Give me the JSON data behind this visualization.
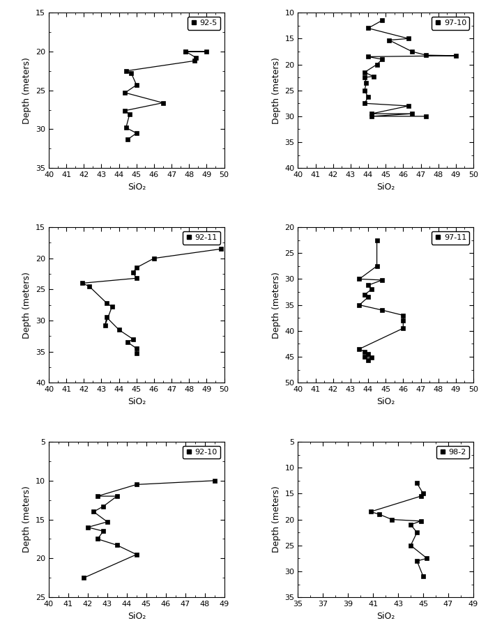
{
  "well_order": [
    [
      "92-5",
      "97-10"
    ],
    [
      "92-11",
      "97-11"
    ],
    [
      "92-10",
      "98-2"
    ]
  ],
  "wells": {
    "92-5": {
      "xlim": [
        40,
        50
      ],
      "xticks": [
        40,
        41,
        42,
        43,
        44,
        45,
        46,
        47,
        48,
        49,
        50
      ],
      "ylim": [
        35,
        15
      ],
      "yticks": [
        15,
        20,
        25,
        30,
        35
      ],
      "points": [
        [
          47.8,
          20.0
        ],
        [
          49.0,
          20.0
        ],
        [
          47.8,
          20.0
        ],
        [
          48.4,
          20.8
        ],
        [
          48.4,
          20.8
        ],
        [
          48.3,
          21.2
        ],
        [
          44.4,
          22.5
        ],
        [
          44.7,
          22.8
        ],
        [
          44.7,
          22.8
        ],
        [
          45.0,
          24.3
        ],
        [
          45.0,
          24.3
        ],
        [
          44.35,
          25.3
        ],
        [
          44.35,
          25.3
        ],
        [
          46.5,
          26.6
        ],
        [
          46.5,
          26.6
        ],
        [
          44.35,
          27.6
        ],
        [
          44.35,
          27.6
        ],
        [
          44.6,
          28.1
        ],
        [
          44.6,
          28.1
        ],
        [
          44.4,
          29.8
        ],
        [
          44.4,
          29.8
        ],
        [
          45.0,
          30.5
        ],
        [
          45.0,
          30.5
        ],
        [
          44.5,
          31.3
        ]
      ]
    },
    "97-10": {
      "xlim": [
        40,
        50
      ],
      "xticks": [
        40,
        41,
        42,
        43,
        44,
        45,
        46,
        47,
        48,
        49,
        50
      ],
      "ylim": [
        40,
        10
      ],
      "yticks": [
        10,
        15,
        20,
        25,
        30,
        35,
        40
      ],
      "points": [
        [
          44.8,
          11.5
        ],
        [
          44.0,
          13.0
        ],
        [
          44.0,
          13.0
        ],
        [
          46.3,
          15.0
        ],
        [
          46.3,
          15.0
        ],
        [
          45.2,
          15.3
        ],
        [
          45.2,
          15.3
        ],
        [
          46.5,
          17.5
        ],
        [
          46.5,
          17.5
        ],
        [
          47.3,
          18.2
        ],
        [
          47.3,
          18.2
        ],
        [
          49.0,
          18.3
        ],
        [
          44.0,
          18.5
        ],
        [
          44.8,
          19.0
        ],
        [
          44.8,
          19.0
        ],
        [
          44.5,
          20.0
        ],
        [
          44.5,
          20.0
        ],
        [
          43.8,
          21.5
        ],
        [
          43.8,
          21.5
        ],
        [
          44.3,
          22.3
        ],
        [
          44.3,
          22.3
        ],
        [
          43.8,
          22.5
        ],
        [
          43.8,
          22.5
        ],
        [
          43.9,
          23.5
        ],
        [
          43.9,
          23.5
        ],
        [
          43.8,
          25.0
        ],
        [
          43.8,
          25.0
        ],
        [
          44.0,
          26.3
        ],
        [
          44.0,
          26.3
        ],
        [
          43.8,
          27.5
        ],
        [
          43.8,
          27.5
        ],
        [
          46.3,
          28.0
        ],
        [
          46.3,
          28.0
        ],
        [
          44.2,
          29.5
        ],
        [
          44.2,
          29.5
        ],
        [
          46.5,
          29.5
        ],
        [
          46.5,
          29.5
        ],
        [
          44.2,
          30.0
        ],
        [
          44.2,
          30.0
        ],
        [
          47.3,
          30.0
        ]
      ]
    },
    "92-11": {
      "xlim": [
        40,
        50
      ],
      "xticks": [
        40,
        41,
        42,
        43,
        44,
        45,
        46,
        47,
        48,
        49,
        50
      ],
      "ylim": [
        40,
        15
      ],
      "yticks": [
        15,
        20,
        25,
        30,
        35,
        40
      ],
      "points": [
        [
          49.8,
          18.5
        ],
        [
          46.0,
          20.0
        ],
        [
          46.0,
          20.0
        ],
        [
          45.0,
          21.5
        ],
        [
          45.0,
          21.5
        ],
        [
          44.8,
          22.3
        ],
        [
          44.8,
          22.3
        ],
        [
          45.0,
          23.2
        ],
        [
          45.0,
          23.2
        ],
        [
          41.9,
          24.0
        ],
        [
          41.9,
          24.0
        ],
        [
          42.3,
          24.5
        ],
        [
          42.3,
          24.5
        ],
        [
          43.3,
          27.2
        ],
        [
          43.3,
          27.2
        ],
        [
          43.6,
          27.8
        ],
        [
          43.6,
          27.8
        ],
        [
          43.2,
          30.8
        ],
        [
          43.2,
          30.8
        ],
        [
          43.3,
          29.5
        ],
        [
          43.3,
          29.5
        ],
        [
          44.0,
          31.5
        ],
        [
          44.0,
          31.5
        ],
        [
          44.8,
          33.0
        ],
        [
          44.8,
          33.0
        ],
        [
          44.5,
          33.5
        ],
        [
          44.5,
          33.5
        ],
        [
          45.0,
          34.5
        ],
        [
          45.0,
          34.5
        ],
        [
          45.0,
          35.3
        ]
      ]
    },
    "97-11": {
      "xlim": [
        40,
        50
      ],
      "xticks": [
        40,
        41,
        42,
        43,
        44,
        45,
        46,
        47,
        48,
        49,
        50
      ],
      "ylim": [
        50,
        20
      ],
      "yticks": [
        20,
        25,
        30,
        35,
        40,
        45,
        50
      ],
      "points": [
        [
          44.5,
          22.5
        ],
        [
          44.5,
          27.5
        ],
        [
          44.5,
          27.5
        ],
        [
          43.5,
          30.0
        ],
        [
          43.5,
          30.0
        ],
        [
          44.8,
          30.2
        ],
        [
          44.8,
          30.2
        ],
        [
          44.0,
          31.2
        ],
        [
          44.0,
          31.2
        ],
        [
          44.2,
          32.0
        ],
        [
          44.2,
          32.0
        ],
        [
          43.8,
          33.0
        ],
        [
          43.8,
          33.0
        ],
        [
          44.0,
          33.5
        ],
        [
          44.0,
          33.5
        ],
        [
          43.5,
          35.0
        ],
        [
          43.5,
          35.0
        ],
        [
          44.8,
          36.0
        ],
        [
          44.8,
          36.0
        ],
        [
          46.0,
          37.0
        ],
        [
          46.0,
          37.0
        ],
        [
          46.0,
          38.0
        ],
        [
          46.0,
          38.0
        ],
        [
          46.0,
          39.5
        ],
        [
          46.0,
          39.5
        ],
        [
          43.5,
          43.5
        ],
        [
          43.5,
          43.5
        ],
        [
          43.8,
          44.0
        ],
        [
          43.8,
          44.0
        ],
        [
          44.0,
          44.5
        ],
        [
          44.0,
          44.5
        ],
        [
          43.8,
          45.0
        ],
        [
          43.8,
          45.0
        ],
        [
          44.2,
          45.2
        ],
        [
          44.2,
          45.2
        ],
        [
          44.0,
          45.7
        ]
      ]
    },
    "92-10": {
      "xlim": [
        40,
        49
      ],
      "xticks": [
        40,
        41,
        42,
        43,
        44,
        45,
        46,
        47,
        48,
        49
      ],
      "ylim": [
        25,
        5
      ],
      "yticks": [
        5,
        10,
        15,
        20,
        25
      ],
      "points": [
        [
          48.5,
          10.0
        ],
        [
          44.5,
          10.5
        ],
        [
          44.5,
          10.5
        ],
        [
          42.5,
          12.0
        ],
        [
          42.5,
          12.0
        ],
        [
          43.5,
          12.0
        ],
        [
          43.5,
          12.0
        ],
        [
          42.8,
          13.3
        ],
        [
          42.8,
          13.3
        ],
        [
          42.3,
          14.0
        ],
        [
          42.3,
          14.0
        ],
        [
          43.0,
          15.3
        ],
        [
          43.0,
          15.3
        ],
        [
          42.0,
          16.0
        ],
        [
          42.0,
          16.0
        ],
        [
          42.8,
          16.5
        ],
        [
          42.8,
          16.5
        ],
        [
          42.5,
          17.5
        ],
        [
          42.5,
          17.5
        ],
        [
          43.5,
          18.3
        ],
        [
          43.5,
          18.3
        ],
        [
          44.5,
          19.5
        ],
        [
          44.5,
          19.5
        ],
        [
          41.8,
          22.5
        ]
      ]
    },
    "98-2": {
      "xlim": [
        35,
        49
      ],
      "xticks": [
        35,
        37,
        39,
        41,
        43,
        45,
        47,
        49
      ],
      "ylim": [
        35,
        5
      ],
      "yticks": [
        5,
        10,
        15,
        20,
        25,
        30,
        35
      ],
      "points": [
        [
          44.5,
          13.0
        ],
        [
          45.0,
          15.0
        ],
        [
          45.0,
          15.0
        ],
        [
          44.8,
          15.5
        ],
        [
          44.8,
          15.5
        ],
        [
          40.8,
          18.5
        ],
        [
          40.8,
          18.5
        ],
        [
          41.5,
          19.0
        ],
        [
          41.5,
          19.0
        ],
        [
          42.5,
          20.0
        ],
        [
          42.5,
          20.0
        ],
        [
          44.8,
          20.3
        ],
        [
          44.8,
          20.3
        ],
        [
          44.0,
          21.0
        ],
        [
          44.0,
          21.0
        ],
        [
          44.5,
          22.5
        ],
        [
          44.5,
          22.5
        ],
        [
          44.0,
          25.0
        ],
        [
          44.0,
          25.0
        ],
        [
          45.3,
          27.5
        ],
        [
          45.3,
          27.5
        ],
        [
          44.5,
          28.0
        ],
        [
          44.5,
          28.0
        ],
        [
          45.0,
          31.0
        ]
      ]
    }
  },
  "xlabel": "SiO₂",
  "ylabel": "Depth (meters)",
  "color": "#000000",
  "markersize": 4,
  "linewidth": 0.9
}
